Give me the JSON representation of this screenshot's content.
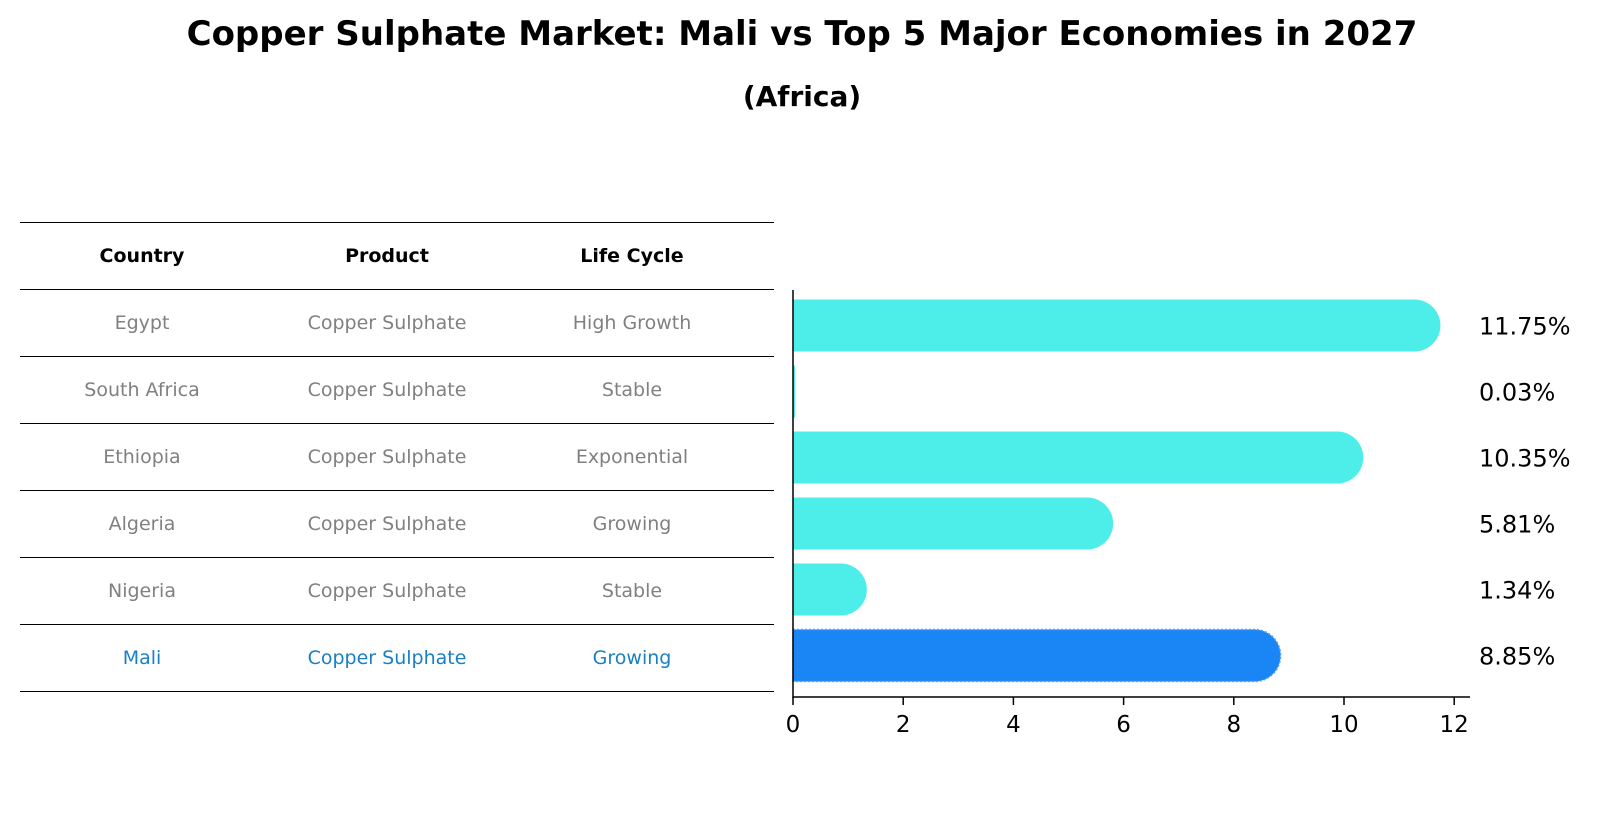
{
  "title": "Copper Sulphate Market: Mali vs Top 5 Major Economies in 2027",
  "subtitle": "(Africa)",
  "table": {
    "headers": [
      "Country",
      "Product",
      "Life Cycle"
    ],
    "rows": [
      [
        "Egypt",
        "Copper Sulphate",
        "High Growth"
      ],
      [
        "South Africa",
        "Copper Sulphate",
        "Stable"
      ],
      [
        "Ethiopia",
        "Copper Sulphate",
        "Exponential"
      ],
      [
        "Algeria",
        "Copper Sulphate",
        "Growing"
      ],
      [
        "Nigeria",
        "Copper Sulphate",
        "Stable"
      ],
      [
        "Mali",
        "Copper Sulphate",
        "Growing"
      ]
    ],
    "highlight_row": 5,
    "highlight_color": "#1a80c4"
  },
  "chart_data": {
    "type": "bar",
    "orientation": "horizontal",
    "categories": [
      "Egypt",
      "South Africa",
      "Ethiopia",
      "Algeria",
      "Nigeria",
      "Mali"
    ],
    "values": [
      11.75,
      0.03,
      10.35,
      5.81,
      1.34,
      8.85
    ],
    "value_labels": [
      "11.75%",
      "0.03%",
      "10.35%",
      "5.81%",
      "1.34%",
      "8.85%"
    ],
    "xlim": [
      0,
      12.5
    ],
    "xticks": [
      0,
      2,
      4,
      6,
      8,
      10,
      12
    ],
    "bar_color": "#4deeea",
    "highlight_color": "#1a85f5",
    "highlight_index": 5,
    "grid": false
  }
}
